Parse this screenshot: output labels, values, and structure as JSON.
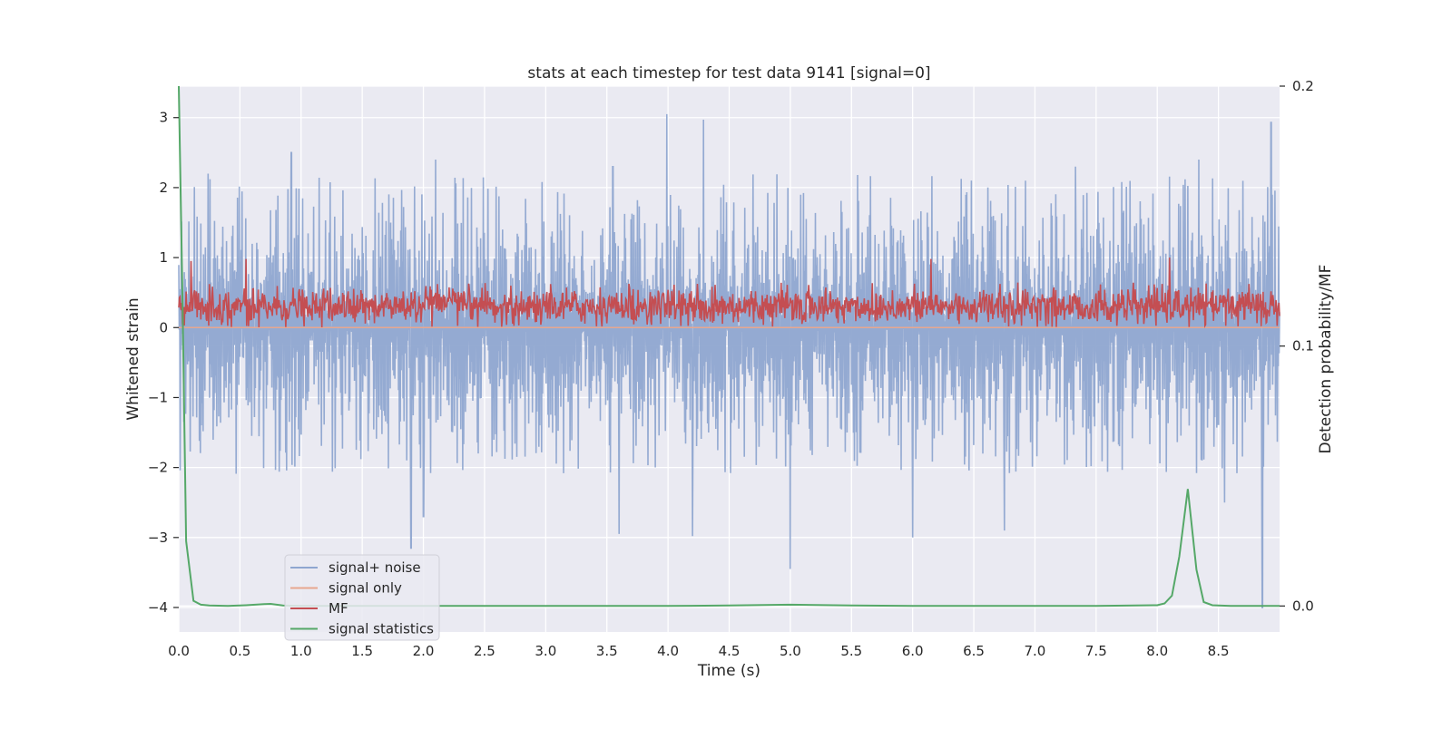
{
  "chart_data": {
    "type": "line",
    "title": "stats at each timestep for test data 9141 [signal=0]",
    "xlabel": "Time (s)",
    "ylabel": "Whitened strain",
    "y2label": "Detection probability/MF",
    "xlim": [
      0.0,
      9.0
    ],
    "ylim": [
      -4.35,
      3.45
    ],
    "y2lim": [
      -0.01,
      0.2
    ],
    "x_ticks": [
      "0.0",
      "0.5",
      "1.0",
      "1.5",
      "2.0",
      "2.5",
      "3.0",
      "3.5",
      "4.0",
      "4.5",
      "5.0",
      "5.5",
      "6.0",
      "6.5",
      "7.0",
      "7.5",
      "8.0",
      "8.5"
    ],
    "y_ticks": [
      "3",
      "2",
      "1",
      "0",
      "−1",
      "−2",
      "−3",
      "−4"
    ],
    "y2_ticks": [
      "0.2",
      "0.1",
      "0.0"
    ],
    "grid": true,
    "legend_position": "lower-left",
    "colors": {
      "background": "#eaeaf2",
      "grid": "#ffffff",
      "noise": "#8fa6d0",
      "signal_only": "#e8a78f",
      "mf": "#c44e52",
      "stats": "#55a868"
    },
    "series": [
      {
        "name": "signal+ noise",
        "axis": "left",
        "x": [
          0.0,
          0.5,
          1.0,
          1.5,
          2.0,
          2.5,
          3.0,
          3.5,
          4.0,
          4.5,
          5.0,
          5.5,
          6.0,
          6.5,
          7.0,
          7.5,
          8.0,
          8.5,
          9.0
        ],
        "values": [
          0.2,
          -0.3,
          0.1,
          0.4,
          -0.2,
          0.0,
          0.3,
          -0.1,
          0.2,
          -0.4,
          0.1,
          0.0,
          -0.2,
          0.3,
          0.1,
          -0.1,
          0.2,
          0.0,
          -0.1
        ],
        "envelope_max": 2.2,
        "envelope_min": -2.1,
        "peaks": [
          [
            0.24,
            2.2
          ],
          [
            0.92,
            2.5
          ],
          [
            2.1,
            2.4
          ],
          [
            3.55,
            2.3
          ],
          [
            3.99,
            3.05
          ],
          [
            4.29,
            2.97
          ],
          [
            7.33,
            2.3
          ],
          [
            8.34,
            2.4
          ],
          [
            8.93,
            2.93
          ]
        ],
        "dips": [
          [
            1.9,
            -3.15
          ],
          [
            2.0,
            -2.7
          ],
          [
            3.6,
            -2.95
          ],
          [
            4.2,
            -2.98
          ],
          [
            5.0,
            -3.45
          ],
          [
            6.0,
            -3.0
          ],
          [
            6.75,
            -2.9
          ],
          [
            8.55,
            -2.5
          ],
          [
            8.86,
            -4.0
          ]
        ]
      },
      {
        "name": "signal only",
        "axis": "left",
        "x": [
          0.0,
          9.0
        ],
        "values": [
          0.0,
          0.0
        ]
      },
      {
        "name": "MF",
        "axis": "left",
        "x": [
          0.0,
          9.0
        ],
        "values": [
          0.3,
          0.3
        ],
        "band_min": 0.0,
        "band_max": 0.65,
        "spikes": [
          [
            0.1,
            0.95
          ],
          [
            0.55,
            0.98
          ],
          [
            6.15,
            0.98
          ],
          [
            8.1,
            1.0
          ]
        ]
      },
      {
        "name": "signal statistics",
        "axis": "right",
        "x": [
          0.0,
          0.03,
          0.06,
          0.12,
          0.18,
          0.25,
          0.4,
          0.55,
          0.7,
          0.75,
          0.85,
          1.0,
          2.0,
          3.0,
          4.0,
          4.5,
          5.0,
          5.5,
          6.0,
          7.0,
          7.5,
          8.0,
          8.06,
          8.12,
          8.18,
          8.25,
          8.32,
          8.38,
          8.45,
          8.6,
          9.0
        ],
        "values": [
          0.2,
          0.12,
          0.025,
          0.002,
          0.0005,
          0.0002,
          0.0,
          0.0003,
          0.0007,
          0.0008,
          0.0002,
          0.0,
          0.0,
          0.0,
          0.0,
          0.0002,
          0.0005,
          0.0002,
          0.0,
          0.0,
          0.0,
          0.0003,
          0.001,
          0.004,
          0.019,
          0.045,
          0.014,
          0.0015,
          0.0003,
          0.0,
          0.0
        ]
      }
    ]
  }
}
